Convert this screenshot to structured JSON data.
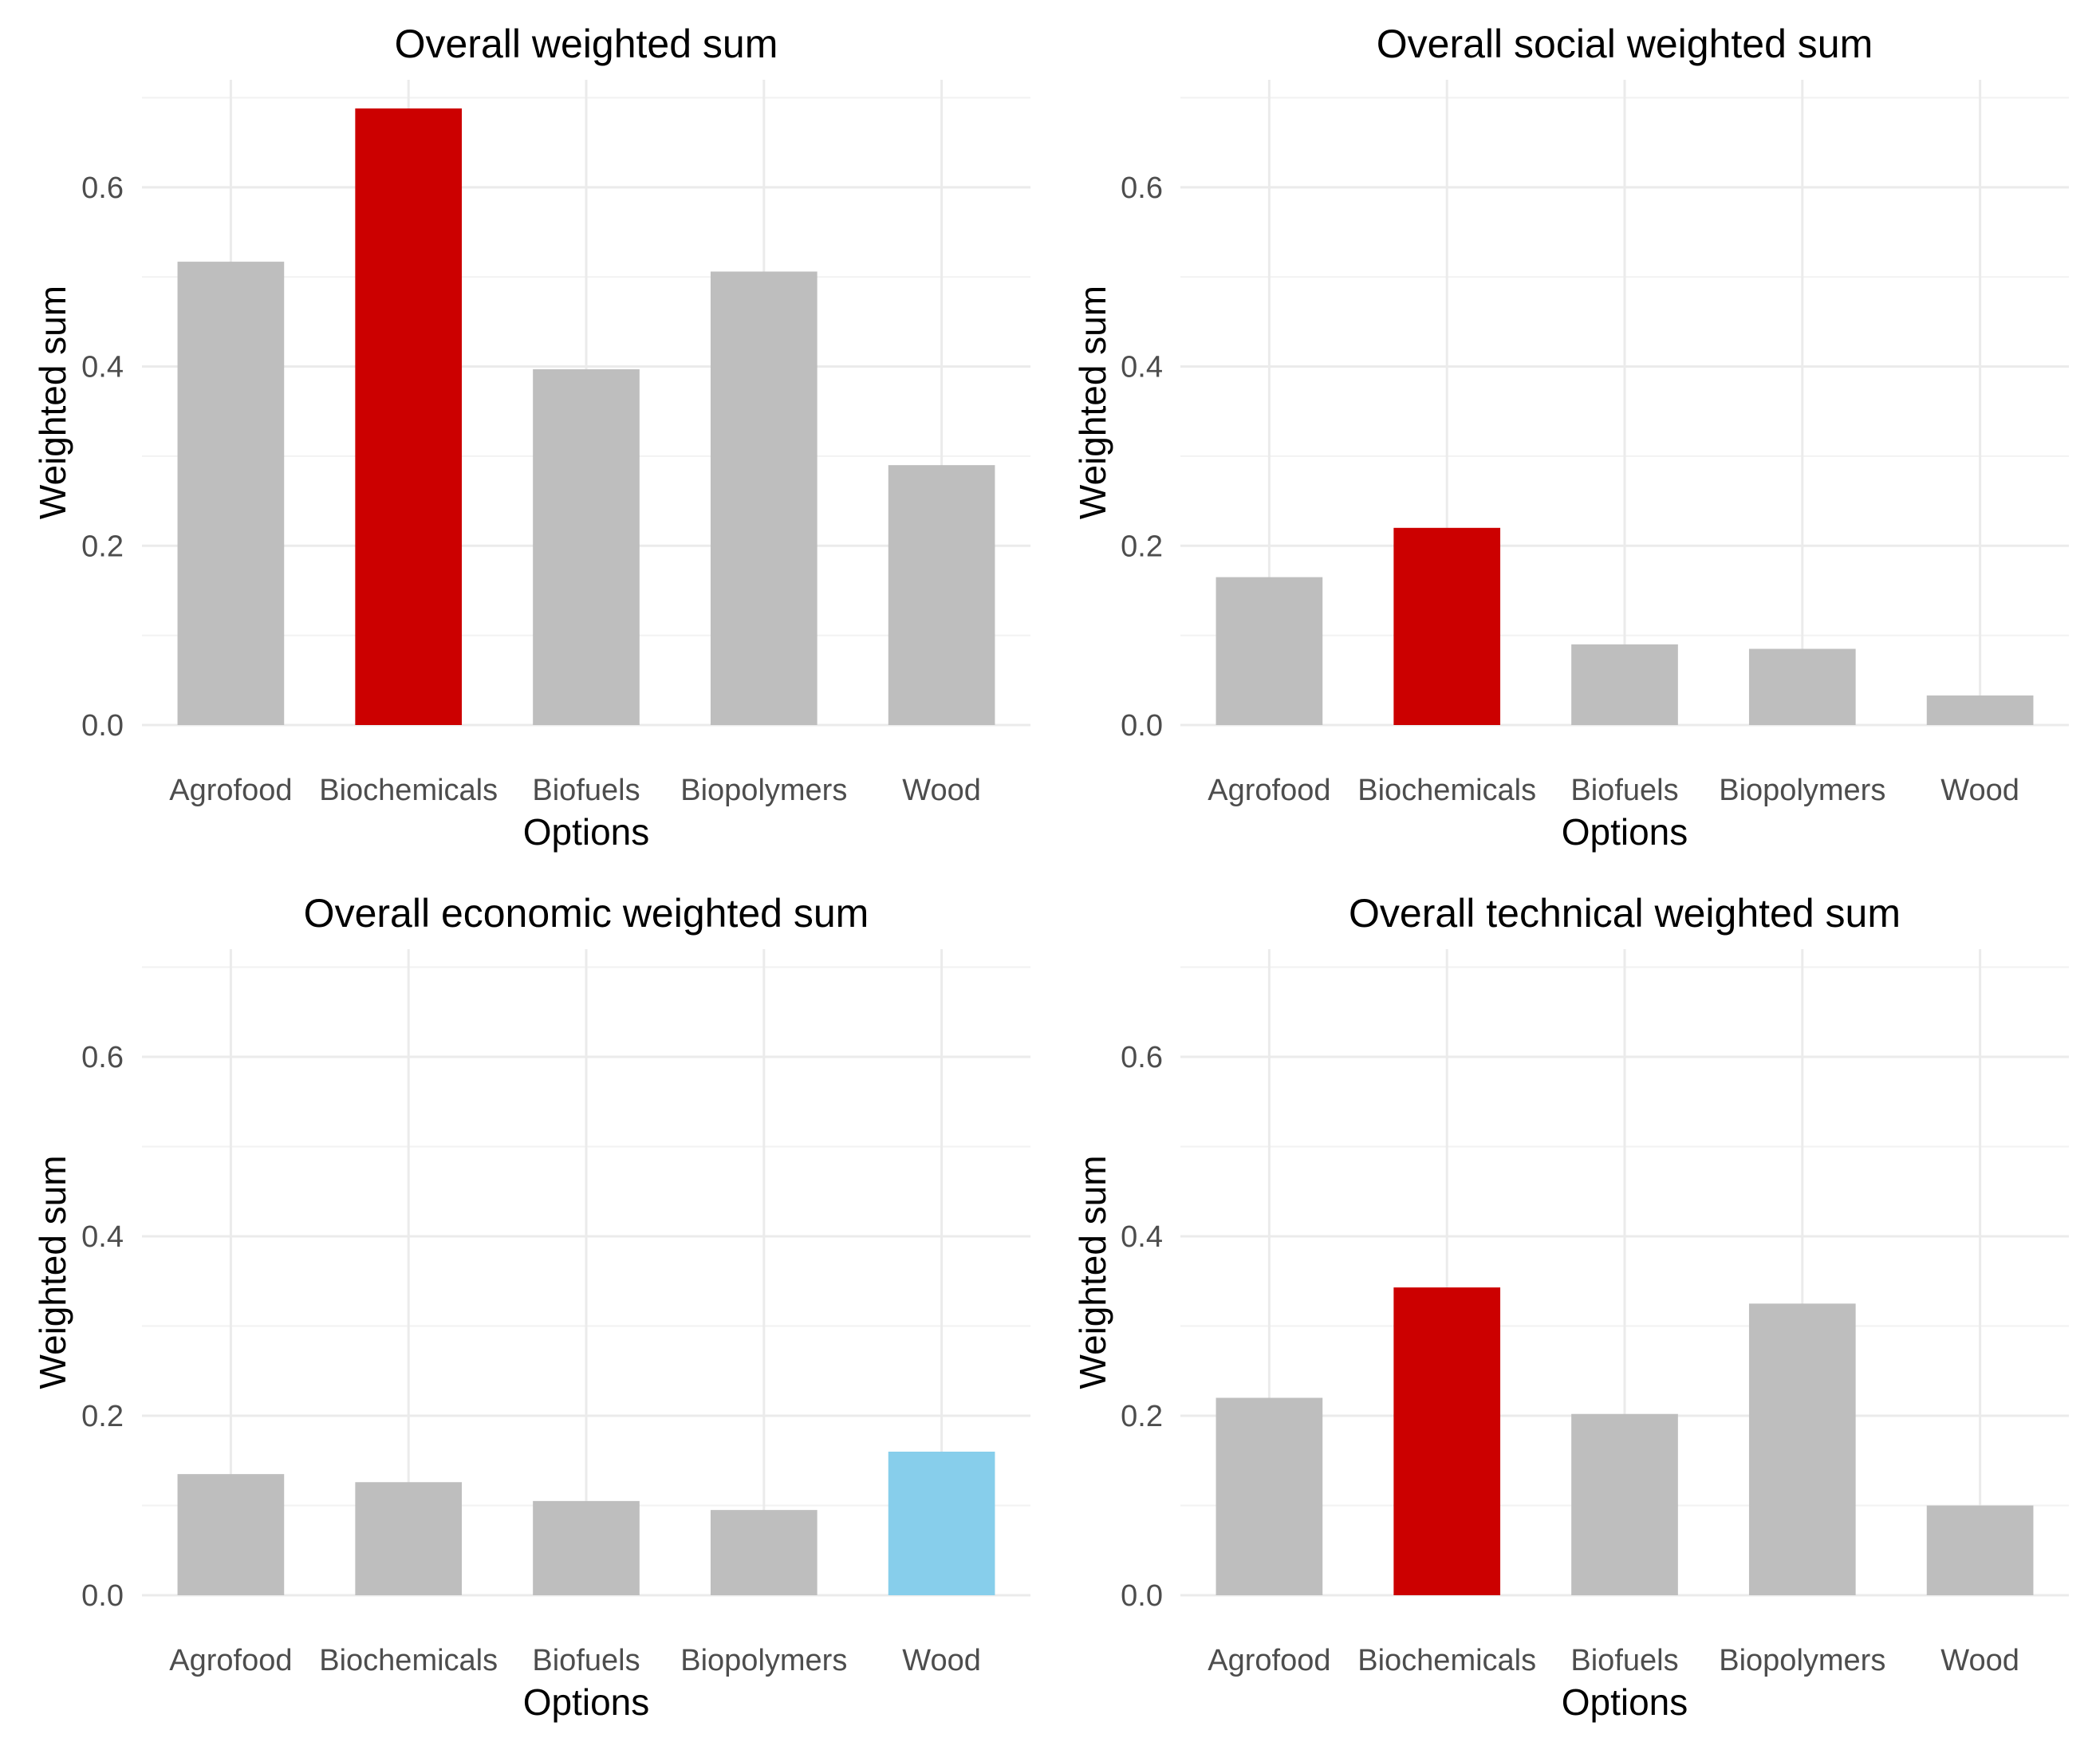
{
  "colors": {
    "default_bar": "#bebebe",
    "highlight_red": "#cc0000",
    "highlight_blue": "#87ceeb",
    "grid_major": "#ebebeb",
    "grid_minor": "#f2f2f2",
    "tick_text": "#4d4d4d",
    "label_text": "#000000"
  },
  "chart_data": [
    {
      "type": "bar",
      "title": "Overall weighted sum",
      "xlabel": "Options",
      "ylabel": "Weighted sum",
      "categories": [
        "Agrofood",
        "Biochemicals",
        "Biofuels",
        "Biopolymers",
        "Wood"
      ],
      "values": [
        0.517,
        0.688,
        0.397,
        0.506,
        0.29
      ],
      "bar_colors": [
        "default_bar",
        "highlight_red",
        "default_bar",
        "default_bar",
        "default_bar"
      ],
      "ylim": [
        0,
        0.72
      ],
      "yticks": [
        0.0,
        0.2,
        0.4,
        0.6
      ],
      "ytick_labels": [
        "0.0",
        "0.2",
        "0.4",
        "0.6"
      ],
      "grid": true,
      "legend": "none"
    },
    {
      "type": "bar",
      "title": "Overall social weighted sum",
      "xlabel": "Options",
      "ylabel": "Weighted sum",
      "categories": [
        "Agrofood",
        "Biochemicals",
        "Biofuels",
        "Biopolymers",
        "Wood"
      ],
      "values": [
        0.165,
        0.22,
        0.09,
        0.085,
        0.033
      ],
      "bar_colors": [
        "default_bar",
        "highlight_red",
        "default_bar",
        "default_bar",
        "default_bar"
      ],
      "ylim": [
        0,
        0.72
      ],
      "yticks": [
        0.0,
        0.2,
        0.4,
        0.6
      ],
      "ytick_labels": [
        "0.0",
        "0.2",
        "0.4",
        "0.6"
      ],
      "grid": true,
      "legend": "none"
    },
    {
      "type": "bar",
      "title": "Overall economic weighted sum",
      "xlabel": "Options",
      "ylabel": "Weighted sum",
      "categories": [
        "Agrofood",
        "Biochemicals",
        "Biofuels",
        "Biopolymers",
        "Wood"
      ],
      "values": [
        0.135,
        0.126,
        0.105,
        0.095,
        0.16
      ],
      "bar_colors": [
        "default_bar",
        "default_bar",
        "default_bar",
        "default_bar",
        "highlight_blue"
      ],
      "ylim": [
        0,
        0.72
      ],
      "yticks": [
        0.0,
        0.2,
        0.4,
        0.6
      ],
      "ytick_labels": [
        "0.0",
        "0.2",
        "0.4",
        "0.6"
      ],
      "grid": true,
      "legend": "none"
    },
    {
      "type": "bar",
      "title": "Overall technical weighted sum",
      "xlabel": "Options",
      "ylabel": "Weighted sum",
      "categories": [
        "Agrofood",
        "Biochemicals",
        "Biofuels",
        "Biopolymers",
        "Wood"
      ],
      "values": [
        0.22,
        0.343,
        0.202,
        0.325,
        0.1
      ],
      "bar_colors": [
        "default_bar",
        "highlight_red",
        "default_bar",
        "default_bar",
        "default_bar"
      ],
      "ylim": [
        0,
        0.72
      ],
      "yticks": [
        0.0,
        0.2,
        0.4,
        0.6
      ],
      "ytick_labels": [
        "0.0",
        "0.2",
        "0.4",
        "0.6"
      ],
      "grid": true,
      "legend": "none"
    }
  ]
}
